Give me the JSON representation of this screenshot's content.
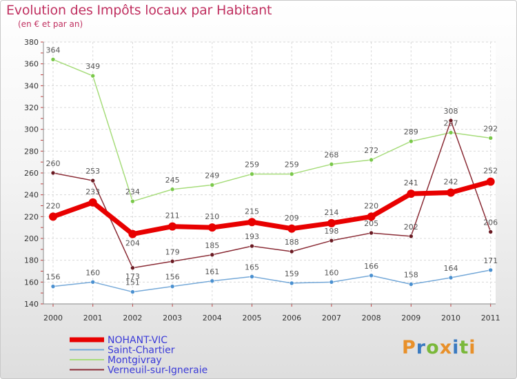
{
  "title": "Evolution des Impôts locaux par Habitant",
  "subtitle": "(en € et par an)",
  "logo": {
    "text": "Proxiti",
    "colors": [
      "#e8902a",
      "#3a7ac0",
      "#7ab83a",
      "#e8902a",
      "#3a7ac0",
      "#7ab83a",
      "#e8902a"
    ]
  },
  "chart_data": {
    "type": "line",
    "title": "Evolution des Impôts locaux par Habitant",
    "subtitle": "(en € et par an)",
    "x": [
      "2000",
      "2001",
      "2002",
      "2003",
      "2004",
      "2005",
      "2006",
      "2007",
      "2008",
      "2009",
      "2010",
      "2011"
    ],
    "ylim": [
      140,
      380
    ],
    "yticks": [
      140,
      160,
      180,
      200,
      220,
      240,
      260,
      280,
      300,
      320,
      340,
      360,
      380
    ],
    "grid": true,
    "legend_position": "bottom-left",
    "series": [
      {
        "name": "Montgivray",
        "color": "#a6dc7a",
        "marker": "#7ac84a",
        "values": [
          364,
          349,
          234,
          245,
          249,
          259,
          259,
          268,
          272,
          289,
          297,
          292
        ],
        "labels": [
          "364",
          "349",
          "234",
          "245",
          "249",
          "259",
          "259",
          "268",
          "272",
          "289",
          "297",
          "292"
        ]
      },
      {
        "name": "Verneuil-sur-Igneraie",
        "color": "#8a2b35",
        "marker": "#6a1a22",
        "values": [
          260,
          253,
          173,
          179,
          185,
          193,
          188,
          198,
          205,
          202,
          308,
          206
        ],
        "labels": [
          "260",
          "253",
          "173",
          "179",
          "185",
          "193",
          "188",
          "198",
          "205",
          "202",
          "308",
          "206"
        ]
      },
      {
        "name": "Saint-Chartier",
        "color": "#74a8d8",
        "marker": "#4a90d0",
        "values": [
          156,
          160,
          151,
          156,
          161,
          165,
          159,
          160,
          166,
          158,
          164,
          171
        ],
        "labels": [
          "156",
          "160",
          "151",
          "156",
          "161",
          "165",
          "159",
          "160",
          "166",
          "158",
          "164",
          "171"
        ]
      },
      {
        "name": "NOHANT-VIC",
        "color": "#e80000",
        "marker": "#e80000",
        "values": [
          220,
          233,
          204,
          211,
          210,
          215,
          209,
          214,
          220,
          241,
          242,
          252
        ],
        "labels": [
          "220",
          "233",
          "204",
          "211",
          "210",
          "215",
          "209",
          "214",
          "220",
          "241",
          "242",
          "252"
        ]
      }
    ],
    "legend": [
      "NOHANT-VIC",
      "Saint-Chartier",
      "Montgivray",
      "Verneuil-sur-Igneraie"
    ]
  }
}
